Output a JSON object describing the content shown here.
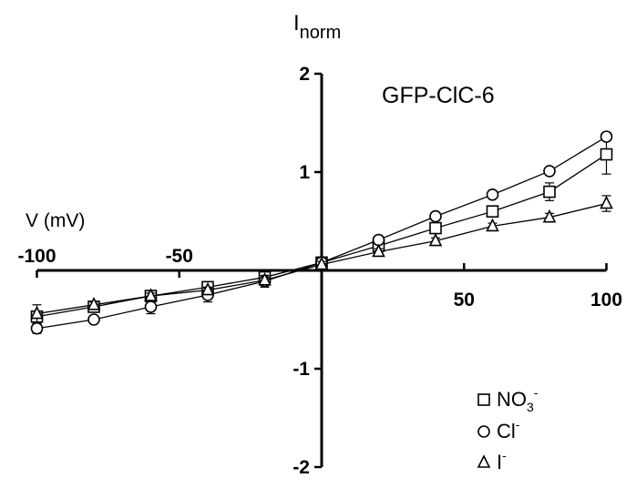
{
  "chart_data": {
    "type": "line",
    "title": "GFP-ClC-6",
    "xlabel": "V (mV)",
    "ylabel": "I",
    "ylabel_sub": "norm",
    "xlim": [
      -100,
      100
    ],
    "ylim": [
      -2,
      2
    ],
    "xticks": [
      -100,
      -50,
      50,
      100
    ],
    "yticks": [
      2,
      1,
      -1,
      -2
    ],
    "x": [
      -100,
      -80,
      -60,
      -40,
      -20,
      0,
      20,
      40,
      60,
      80,
      100
    ],
    "series": [
      {
        "name": "NO3-",
        "label_main": "NO",
        "label_sub": "3",
        "label_sup": "-",
        "marker": "square",
        "values": [
          -0.47,
          -0.37,
          -0.26,
          -0.17,
          -0.07,
          0.08,
          0.25,
          0.43,
          0.6,
          0.8,
          1.18
        ],
        "errors": [
          0.05,
          0.05,
          0.03,
          0.03,
          0.03,
          0.03,
          0.03,
          0.04,
          0.05,
          0.09,
          0.2
        ]
      },
      {
        "name": "Cl-",
        "label_main": "Cl",
        "label_sup": "-",
        "marker": "circle",
        "values": [
          -0.59,
          -0.5,
          -0.37,
          -0.25,
          -0.11,
          0.08,
          0.31,
          0.55,
          0.77,
          1.01,
          1.36
        ],
        "errors": [
          0.05,
          0.03,
          0.07,
          0.07,
          0.06,
          0.04,
          0.04,
          0.04,
          0.03,
          0.03,
          0.04
        ]
      },
      {
        "name": "I-",
        "label_main": "I",
        "label_sup": "-",
        "marker": "triangle",
        "values": [
          -0.44,
          -0.35,
          -0.26,
          -0.2,
          -0.1,
          0.06,
          0.19,
          0.3,
          0.45,
          0.54,
          0.68
        ],
        "errors": [
          0.09,
          0.03,
          0.03,
          0.03,
          0.03,
          0.03,
          0.03,
          0.03,
          0.03,
          0.04,
          0.08
        ]
      }
    ],
    "legend_position": "bottom-right",
    "grid": false
  }
}
